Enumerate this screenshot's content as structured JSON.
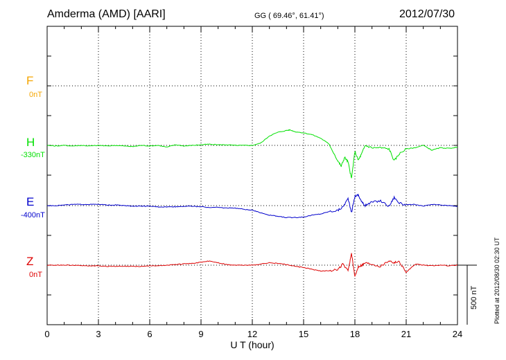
{
  "header": {
    "station": "Amderma (AMD)  [AARI]",
    "coords": "GG ( 69.46°,  61.41°)",
    "date": "2012/07/30"
  },
  "components": [
    {
      "name": "F",
      "baseline": "0nT",
      "color": "#f5a500"
    },
    {
      "name": "H",
      "baseline": "-330nT",
      "color": "#00e000"
    },
    {
      "name": "E",
      "baseline": "-400nT",
      "color": "#0000cc"
    },
    {
      "name": "Z",
      "baseline": "0nT",
      "color": "#dd0000"
    }
  ],
  "footer": {
    "plotted": "Plotted at 2012/08/30 02:30 UT",
    "scale": "500 nT"
  },
  "chart_data": {
    "type": "line",
    "xlabel": "U T (hour)",
    "xlim": [
      0,
      24
    ],
    "xticks": [
      0,
      3,
      6,
      9,
      12,
      15,
      18,
      21,
      24
    ],
    "xtick_labels": [
      "0",
      "3",
      "6",
      "9",
      "12",
      "15",
      "18",
      "21",
      "24"
    ],
    "ylabel": "",
    "y_unit": "nT",
    "scale_bar_nT": 500,
    "grid": true,
    "series": [
      {
        "name": "H",
        "baseline_nT": -330,
        "color": "#00e000",
        "x": [
          0,
          0.5,
          1,
          1.5,
          2,
          2.5,
          3,
          3.5,
          4,
          4.5,
          5,
          5.5,
          6,
          6.5,
          7,
          7.5,
          8,
          8.5,
          9,
          9.5,
          10,
          10.5,
          11,
          11.5,
          12,
          12.5,
          13,
          13.5,
          14,
          14.2,
          14.5,
          15,
          15.5,
          16,
          16.5,
          17,
          17.2,
          17.4,
          17.6,
          17.8,
          18,
          18.2,
          18.4,
          18.6,
          19,
          19.5,
          20,
          20.3,
          20.6,
          21,
          21.5,
          22,
          22.5,
          23,
          23.5,
          24
        ],
        "y": [
          0,
          -5,
          0,
          -5,
          0,
          -5,
          0,
          -5,
          0,
          -5,
          -10,
          0,
          -5,
          0,
          -15,
          5,
          -5,
          0,
          5,
          10,
          5,
          5,
          0,
          0,
          0,
          20,
          80,
          110,
          125,
          130,
          115,
          105,
          90,
          60,
          10,
          -130,
          -175,
          -100,
          -140,
          -280,
          -50,
          -125,
          -70,
          0,
          -20,
          -20,
          -30,
          -130,
          -70,
          -30,
          -20,
          0,
          -40,
          -20,
          -25,
          -15
        ]
      },
      {
        "name": "E",
        "baseline_nT": -400,
        "color": "#0000cc",
        "x": [
          0,
          0.5,
          1,
          1.5,
          2,
          2.5,
          3,
          3.5,
          4,
          4.5,
          5,
          5.5,
          6,
          6.5,
          7,
          7.5,
          8,
          8.5,
          9,
          9.5,
          10,
          10.5,
          11,
          11.5,
          12,
          12.5,
          13,
          13.5,
          14,
          14.5,
          15,
          15.5,
          16,
          16.5,
          17,
          17.3,
          17.6,
          17.8,
          18,
          18.2,
          18.4,
          18.6,
          19,
          19.5,
          20,
          20.3,
          20.6,
          21,
          21.5,
          22,
          22.5,
          23,
          23.5,
          24
        ],
        "y": [
          0,
          0,
          5,
          10,
          10,
          10,
          10,
          5,
          5,
          0,
          -5,
          -5,
          -5,
          -10,
          -10,
          -10,
          -5,
          -5,
          -10,
          -15,
          -15,
          -20,
          -20,
          -30,
          -40,
          -60,
          -80,
          -90,
          -100,
          -100,
          -95,
          -80,
          -70,
          -50,
          -40,
          -10,
          60,
          -60,
          80,
          90,
          30,
          0,
          30,
          40,
          -5,
          70,
          20,
          5,
          10,
          -5,
          10,
          5,
          0,
          -5
        ]
      },
      {
        "name": "Z",
        "baseline_nT": 0,
        "color": "#dd0000",
        "x": [
          0,
          0.5,
          1,
          1.5,
          2,
          2.5,
          3,
          3.5,
          4,
          4.5,
          5,
          5.5,
          6,
          6.5,
          7,
          7.5,
          8,
          8.5,
          9,
          9.5,
          10,
          10.5,
          11,
          11.5,
          12,
          12.5,
          13,
          13.5,
          14,
          14.5,
          15,
          15.5,
          16,
          16.5,
          17,
          17.3,
          17.6,
          17.8,
          18,
          18.2,
          18.4,
          18.6,
          19,
          19.5,
          20,
          20.3,
          20.6,
          21,
          21.3,
          21.6,
          22,
          22.5,
          23,
          23.5,
          24
        ],
        "y": [
          0,
          0,
          0,
          0,
          -5,
          -5,
          -5,
          -10,
          -10,
          -10,
          -10,
          -10,
          -5,
          -5,
          0,
          5,
          10,
          15,
          25,
          35,
          20,
          5,
          0,
          0,
          0,
          10,
          20,
          15,
          5,
          -10,
          -20,
          -35,
          -50,
          -45,
          -40,
          10,
          -50,
          100,
          -100,
          -10,
          0,
          20,
          10,
          -10,
          40,
          20,
          30,
          -60,
          -20,
          10,
          0,
          -5,
          0,
          -5,
          0
        ]
      }
    ]
  }
}
